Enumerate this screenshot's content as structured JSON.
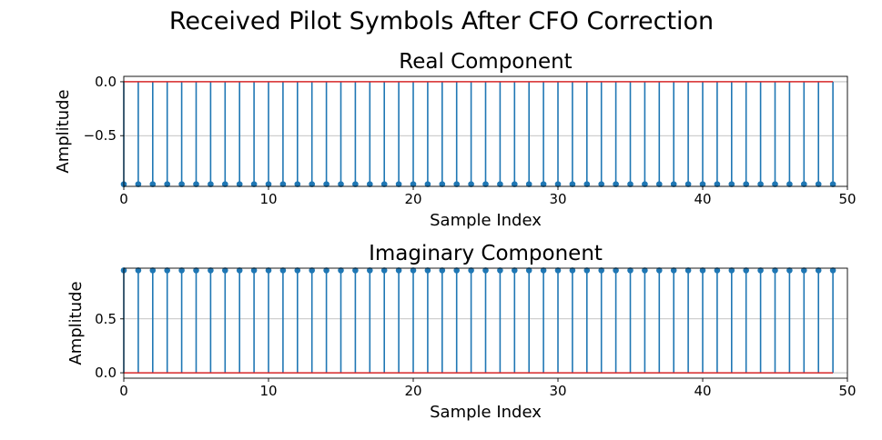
{
  "figure": {
    "title": "Received Pilot Symbols After CFO Correction"
  },
  "chart_data": [
    {
      "type": "stem",
      "title": "Real Component",
      "xlabel": "Sample Index",
      "ylabel": "Amplitude",
      "xlim": [
        0,
        50
      ],
      "ylim": [
        -0.97,
        0.05
      ],
      "xticks": [
        0,
        10,
        20,
        30,
        40,
        50
      ],
      "yticks": [
        0.0,
        -0.5
      ],
      "ytick_labels": [
        "0.0",
        "−0.5"
      ],
      "grid": "y",
      "x": [
        0,
        1,
        2,
        3,
        4,
        5,
        6,
        7,
        8,
        9,
        10,
        11,
        12,
        13,
        14,
        15,
        16,
        17,
        18,
        19,
        20,
        21,
        22,
        23,
        24,
        25,
        26,
        27,
        28,
        29,
        30,
        31,
        32,
        33,
        34,
        35,
        36,
        37,
        38,
        39,
        40,
        41,
        42,
        43,
        44,
        45,
        46,
        47,
        48,
        49
      ],
      "values": [
        -0.95,
        -0.95,
        -0.95,
        -0.95,
        -0.95,
        -0.95,
        -0.95,
        -0.95,
        -0.95,
        -0.95,
        -0.95,
        -0.95,
        -0.95,
        -0.95,
        -0.95,
        -0.95,
        -0.95,
        -0.95,
        -0.95,
        -0.95,
        -0.95,
        -0.95,
        -0.95,
        -0.95,
        -0.95,
        -0.95,
        -0.95,
        -0.95,
        -0.95,
        -0.95,
        -0.95,
        -0.95,
        -0.95,
        -0.95,
        -0.95,
        -0.95,
        -0.95,
        -0.95,
        -0.95,
        -0.95,
        -0.95,
        -0.95,
        -0.95,
        -0.95,
        -0.95,
        -0.95,
        -0.95,
        -0.95,
        -0.95,
        -0.95
      ],
      "baseline": 0.0,
      "color": "#1f77b4"
    },
    {
      "type": "stem",
      "title": "Imaginary Component",
      "xlabel": "Sample Index",
      "ylabel": "Amplitude",
      "xlim": [
        0,
        50
      ],
      "ylim": [
        -0.05,
        0.97
      ],
      "xticks": [
        0,
        10,
        20,
        30,
        40,
        50
      ],
      "yticks": [
        0.0,
        0.5
      ],
      "ytick_labels": [
        "0.0",
        "0.5"
      ],
      "grid": "y",
      "x": [
        0,
        1,
        2,
        3,
        4,
        5,
        6,
        7,
        8,
        9,
        10,
        11,
        12,
        13,
        14,
        15,
        16,
        17,
        18,
        19,
        20,
        21,
        22,
        23,
        24,
        25,
        26,
        27,
        28,
        29,
        30,
        31,
        32,
        33,
        34,
        35,
        36,
        37,
        38,
        39,
        40,
        41,
        42,
        43,
        44,
        45,
        46,
        47,
        48,
        49
      ],
      "values": [
        0.95,
        0.95,
        0.95,
        0.95,
        0.95,
        0.95,
        0.95,
        0.95,
        0.95,
        0.95,
        0.95,
        0.95,
        0.95,
        0.95,
        0.95,
        0.95,
        0.95,
        0.95,
        0.95,
        0.95,
        0.95,
        0.95,
        0.95,
        0.95,
        0.95,
        0.95,
        0.95,
        0.95,
        0.95,
        0.95,
        0.95,
        0.95,
        0.95,
        0.95,
        0.95,
        0.95,
        0.95,
        0.95,
        0.95,
        0.95,
        0.95,
        0.95,
        0.95,
        0.95,
        0.95,
        0.95,
        0.95,
        0.95,
        0.95,
        0.95
      ],
      "baseline": 0.0,
      "color": "#1f77b4"
    }
  ]
}
